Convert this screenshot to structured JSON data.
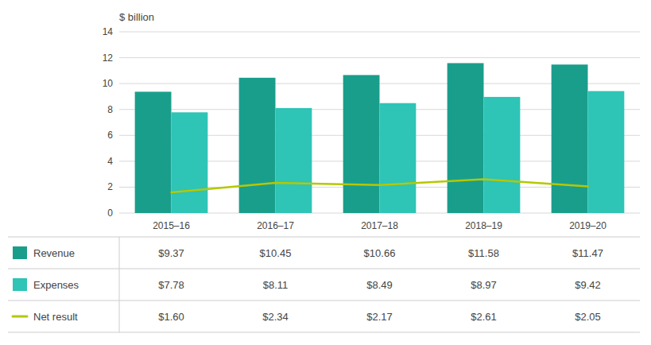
{
  "chart_data": {
    "type": "bar",
    "y_label": "$ billion",
    "categories": [
      "2015–16",
      "2016–17",
      "2017–18",
      "2018–19",
      "2019–20"
    ],
    "series": [
      {
        "name": "Revenue",
        "color": "#1a9e8c",
        "values": [
          9.37,
          10.45,
          10.66,
          11.58,
          11.47
        ],
        "value_labels": [
          "$9.37",
          "$10.45",
          "$10.66",
          "$11.58",
          "$11.47"
        ]
      },
      {
        "name": "Expenses",
        "color": "#2ec4b6",
        "values": [
          7.78,
          8.11,
          8.49,
          8.97,
          9.42
        ],
        "value_labels": [
          "$7.78",
          "$8.11",
          "$8.49",
          "$8.97",
          "$9.42"
        ]
      },
      {
        "name": "Net result",
        "type": "line",
        "color": "#b5c800",
        "values": [
          1.6,
          2.34,
          2.17,
          2.61,
          2.05
        ],
        "value_labels": [
          "$1.60",
          "$2.34",
          "$2.17",
          "$2.61",
          "$2.05"
        ]
      }
    ],
    "ylim": [
      0,
      14
    ],
    "yticks": [
      0,
      2,
      4,
      6,
      8,
      10,
      12,
      14
    ],
    "grid": true,
    "legend": "bottom",
    "data_labels": true
  }
}
